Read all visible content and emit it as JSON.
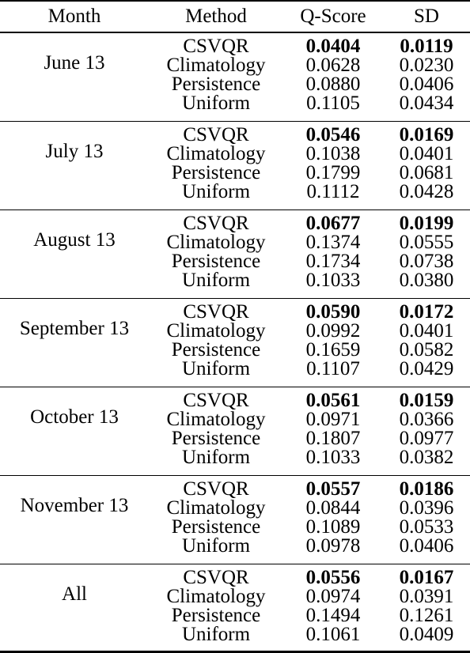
{
  "header": {
    "month": "Month",
    "method": "Method",
    "qscore": "Q-Score",
    "sd": "SD"
  },
  "groups": [
    {
      "month": "June 13",
      "rows": [
        {
          "method": "CSVQR",
          "qscore": "0.0404",
          "sd": "0.0119"
        },
        {
          "method": "Climatology",
          "qscore": "0.0628",
          "sd": "0.0230"
        },
        {
          "method": "Persistence",
          "qscore": "0.0880",
          "sd": "0.0406"
        },
        {
          "method": "Uniform",
          "qscore": "0.1105",
          "sd": "0.0434"
        }
      ]
    },
    {
      "month": "July 13",
      "rows": [
        {
          "method": "CSVQR",
          "qscore": "0.0546",
          "sd": "0.0169"
        },
        {
          "method": "Climatology",
          "qscore": "0.1038",
          "sd": "0.0401"
        },
        {
          "method": "Persistence",
          "qscore": "0.1799",
          "sd": "0.0681"
        },
        {
          "method": "Uniform",
          "qscore": "0.1112",
          "sd": "0.0428"
        }
      ]
    },
    {
      "month": "August 13",
      "rows": [
        {
          "method": "CSVQR",
          "qscore": "0.0677",
          "sd": "0.0199"
        },
        {
          "method": "Climatology",
          "qscore": "0.1374",
          "sd": "0.0555"
        },
        {
          "method": "Persistence",
          "qscore": "0.1734",
          "sd": "0.0738"
        },
        {
          "method": "Uniform",
          "qscore": "0.1033",
          "sd": "0.0380"
        }
      ]
    },
    {
      "month": "September 13",
      "rows": [
        {
          "method": "CSVQR",
          "qscore": "0.0590",
          "sd": "0.0172"
        },
        {
          "method": "Climatology",
          "qscore": "0.0992",
          "sd": "0.0401"
        },
        {
          "method": "Persistence",
          "qscore": "0.1659",
          "sd": "0.0582"
        },
        {
          "method": "Uniform",
          "qscore": "0.1107",
          "sd": "0.0429"
        }
      ]
    },
    {
      "month": "October 13",
      "rows": [
        {
          "method": "CSVQR",
          "qscore": "0.0561",
          "sd": "0.0159"
        },
        {
          "method": "Climatology",
          "qscore": "0.0971",
          "sd": "0.0366"
        },
        {
          "method": "Persistence",
          "qscore": "0.1807",
          "sd": "0.0977"
        },
        {
          "method": "Uniform",
          "qscore": "0.1033",
          "sd": "0.0382"
        }
      ]
    },
    {
      "month": "November 13",
      "rows": [
        {
          "method": "CSVQR",
          "qscore": "0.0557",
          "sd": "0.0186"
        },
        {
          "method": "Climatology",
          "qscore": "0.0844",
          "sd": "0.0396"
        },
        {
          "method": "Persistence",
          "qscore": "0.1089",
          "sd": "0.0533"
        },
        {
          "method": "Uniform",
          "qscore": "0.0978",
          "sd": "0.0406"
        }
      ]
    },
    {
      "month": "All",
      "rows": [
        {
          "method": "CSVQR",
          "qscore": "0.0556",
          "sd": "0.0167"
        },
        {
          "method": "Climatology",
          "qscore": "0.0974",
          "sd": "0.0391"
        },
        {
          "method": "Persistence",
          "qscore": "0.1494",
          "sd": "0.1261"
        },
        {
          "method": "Uniform",
          "qscore": "0.1061",
          "sd": "0.0409"
        }
      ]
    }
  ]
}
